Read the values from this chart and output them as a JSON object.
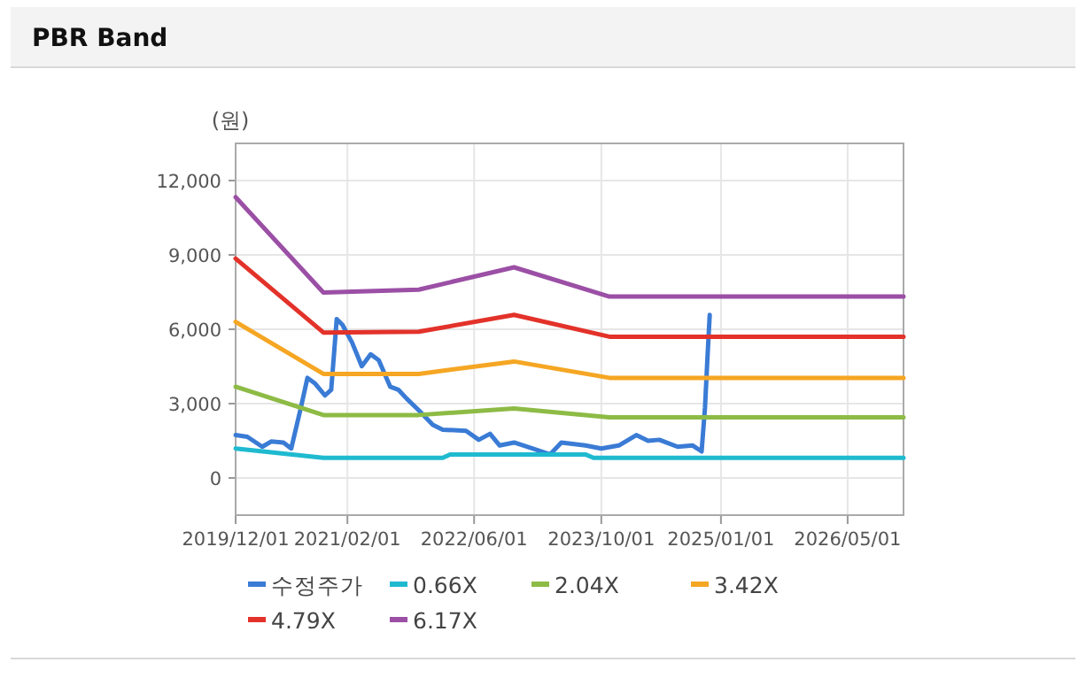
{
  "chart_data": {
    "type": "line",
    "title": "PBR Band",
    "ylabel": "(원)",
    "xlim": [
      "2019-12-01",
      "2026-12-01"
    ],
    "ylim": [
      -1500,
      13500
    ],
    "xticks": [
      {
        "value": "2019-12-01",
        "label": "2019/12/01"
      },
      {
        "value": "2021-02-01",
        "label": "2021/02/01"
      },
      {
        "value": "2022-06-01",
        "label": "2022/06/01"
      },
      {
        "value": "2023-10-01",
        "label": "2023/10/01"
      },
      {
        "value": "2025-01-01",
        "label": "2025/01/01"
      },
      {
        "value": "2026-05-01",
        "label": "2026/05/01"
      }
    ],
    "yticks": [
      0,
      {
        "value": 3000,
        "label": "3,000"
      },
      {
        "value": 6000,
        "label": "6,000"
      },
      {
        "value": 9000,
        "label": "9,000"
      },
      {
        "value": 12000,
        "label": "12,000"
      }
    ],
    "grid": true,
    "legend": "bottom",
    "series": [
      {
        "name": "수정주가",
        "color": "#3a7bd5",
        "x": [
          "2019-12-01",
          "2020-01-15",
          "2020-03-12",
          "2020-04-15",
          "2020-06-01",
          "2020-07-01",
          "2020-08-07",
          "2020-09-01",
          "2020-10-01",
          "2020-11-07",
          "2020-12-01",
          "2020-12-22",
          "2021-01-13",
          "2021-02-19",
          "2021-03-28",
          "2021-05-01",
          "2021-06-01",
          "2021-07-15",
          "2021-08-15",
          "2021-09-15",
          "2021-11-01",
          "2021-12-25",
          "2022-02-01",
          "2022-05-01",
          "2022-06-19",
          "2022-08-01",
          "2022-09-07",
          "2022-11-01",
          "2023-01-10",
          "2023-03-19",
          "2023-05-01",
          "2023-08-01",
          "2023-10-01",
          "2023-12-07",
          "2024-02-12",
          "2024-03-28",
          "2024-05-10",
          "2024-07-19",
          "2024-09-15",
          "2024-10-19",
          "2024-11-01",
          "2024-11-10",
          "2024-11-19"
        ],
        "values": [
          1730,
          1660,
          1260,
          1470,
          1430,
          1190,
          2850,
          4040,
          3800,
          3330,
          3560,
          6410,
          6180,
          5460,
          4510,
          4990,
          4750,
          3680,
          3560,
          3210,
          2730,
          2140,
          1950,
          1900,
          1540,
          1780,
          1310,
          1430,
          1190,
          950,
          1430,
          1310,
          1190,
          1310,
          1730,
          1500,
          1540,
          1260,
          1310,
          1070,
          2850,
          4770,
          6580
        ]
      },
      {
        "name": "0.66X",
        "color": "#1fbad0",
        "x": [
          "2019-12-01",
          "2020-11-01",
          "2022-02-01",
          "2022-03-01",
          "2023-08-01",
          "2023-09-01",
          "2026-12-01"
        ],
        "values": [
          1190,
          810,
          810,
          950,
          950,
          810,
          810
        ]
      },
      {
        "name": "2.04X",
        "color": "#8dbb45",
        "x": [
          "2019-12-01",
          "2020-11-01",
          "2021-11-01",
          "2022-11-01",
          "2023-11-01",
          "2026-12-01"
        ],
        "values": [
          3680,
          2540,
          2540,
          2800,
          2450,
          2450
        ]
      },
      {
        "name": "3.42X",
        "color": "#f5a623",
        "x": [
          "2019-12-01",
          "2020-11-01",
          "2021-11-01",
          "2022-11-01",
          "2023-11-01",
          "2026-12-01"
        ],
        "values": [
          6300,
          4200,
          4200,
          4700,
          4040,
          4040
        ]
      },
      {
        "name": "4.79X",
        "color": "#e3322a",
        "x": [
          "2019-12-01",
          "2020-11-01",
          "2021-11-01",
          "2022-11-01",
          "2023-11-01",
          "2026-12-01"
        ],
        "values": [
          8850,
          5870,
          5900,
          6580,
          5700,
          5700
        ]
      },
      {
        "name": "6.17X",
        "color": "#9b4fa5",
        "x": [
          "2019-12-01",
          "2020-11-01",
          "2021-11-01",
          "2022-11-01",
          "2023-11-01",
          "2026-12-01"
        ],
        "values": [
          11330,
          7480,
          7600,
          8500,
          7320,
          7320
        ]
      }
    ]
  }
}
